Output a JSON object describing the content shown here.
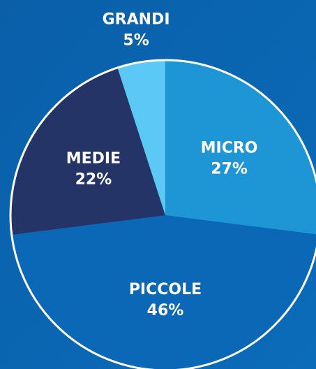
{
  "chart_data": {
    "type": "pie",
    "categories": [
      "MICRO",
      "PICCOLE",
      "MEDIE",
      "GRANDI"
    ],
    "values": [
      27,
      46,
      22,
      5
    ],
    "value_labels": [
      "27%",
      "46%",
      "22%",
      "5%"
    ],
    "colors": [
      "#1e96d6",
      "#0b68b6",
      "#243466",
      "#5bc8f5"
    ]
  }
}
